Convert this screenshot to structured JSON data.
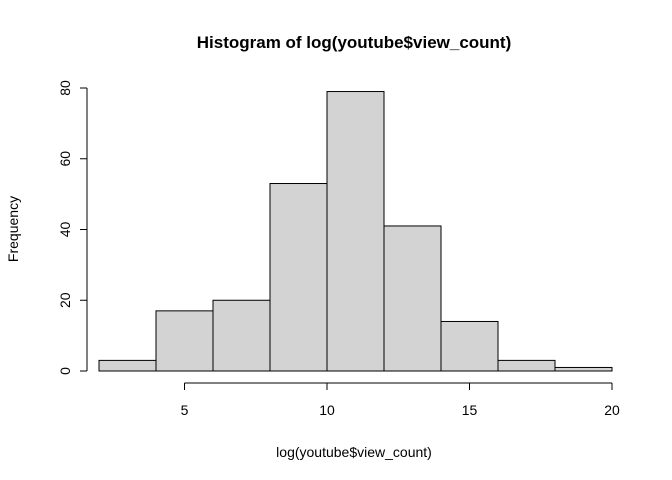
{
  "chart_data": {
    "type": "bar",
    "title": "Histogram of log(youtube$view_count)",
    "xlabel": "log(youtube$view_count)",
    "ylabel": "Frequency",
    "bins": [
      {
        "x0": 2,
        "x1": 4,
        "count": 3
      },
      {
        "x0": 4,
        "x1": 6,
        "count": 17
      },
      {
        "x0": 6,
        "x1": 8,
        "count": 20
      },
      {
        "x0": 8,
        "x1": 10,
        "count": 53
      },
      {
        "x0": 10,
        "x1": 12,
        "count": 79
      },
      {
        "x0": 12,
        "x1": 14,
        "count": 41
      },
      {
        "x0": 14,
        "x1": 16,
        "count": 14
      },
      {
        "x0": 16,
        "x1": 18,
        "count": 3
      },
      {
        "x0": 18,
        "x1": 20,
        "count": 1
      }
    ],
    "xticks": [
      5,
      10,
      15,
      20
    ],
    "yticks": [
      0,
      20,
      40,
      60,
      80
    ],
    "xlim": [
      2,
      20
    ],
    "ylim": [
      0,
      80
    ],
    "grid": false,
    "legend": "none",
    "bar_fill": "#d3d3d3",
    "bar_stroke": "#000000"
  }
}
